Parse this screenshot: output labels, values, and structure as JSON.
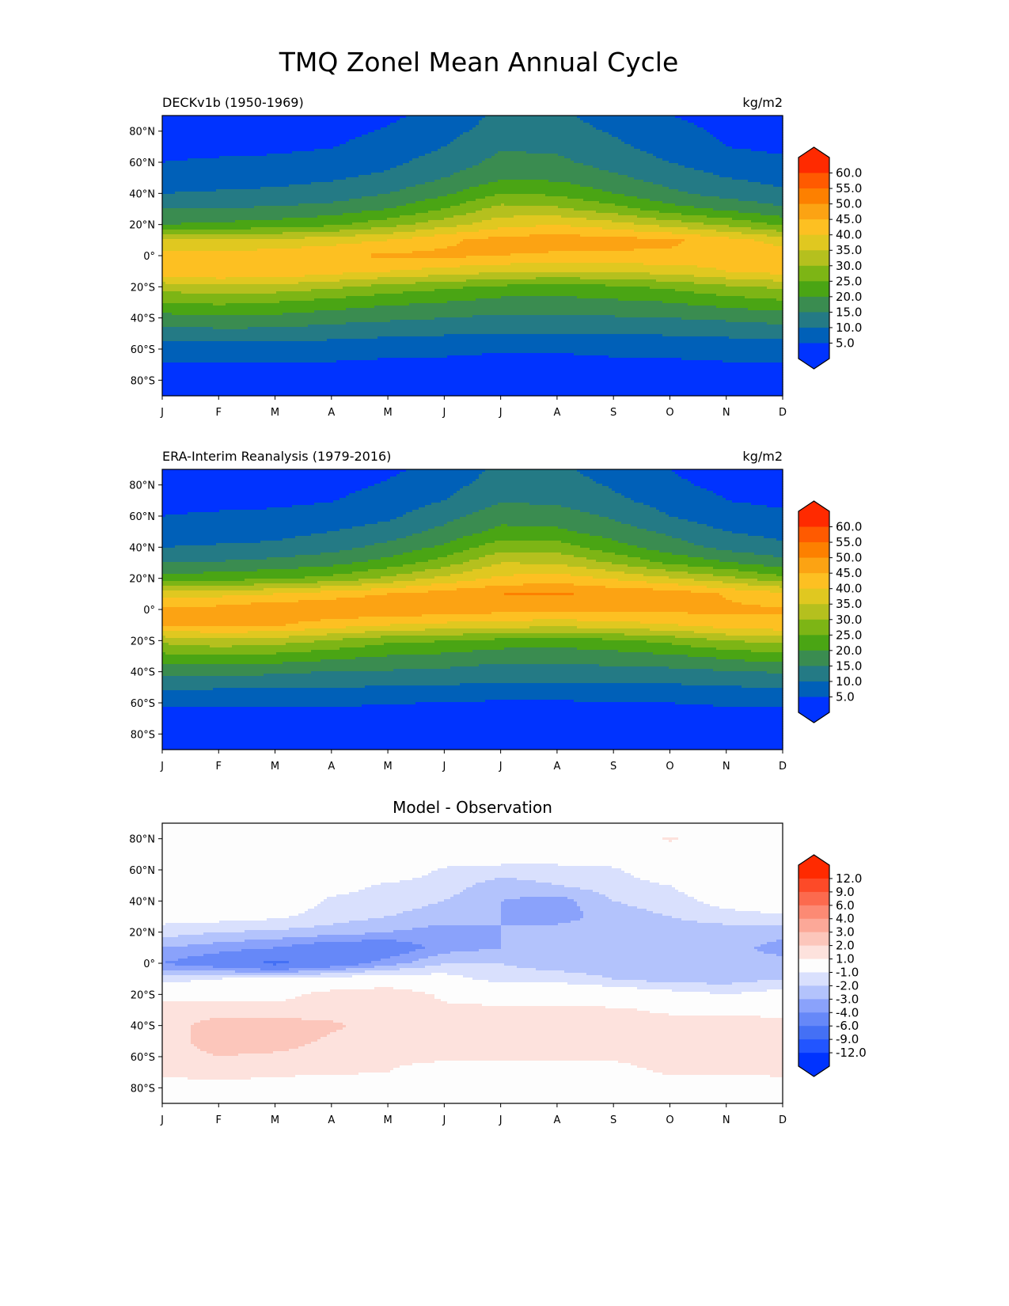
{
  "title": "TMQ Zonel Mean Annual Cycle",
  "chart_data": [
    {
      "type": "heatmap",
      "subtype": "filled-contour",
      "title_left": "DECKv1b (1950-1969)",
      "title_right": "kg/m2",
      "title_center": "",
      "x_ticks": [
        "J",
        "F",
        "M",
        "A",
        "M",
        "J",
        "J",
        "A",
        "S",
        "O",
        "N",
        "D"
      ],
      "y_ticks": [
        "80°N",
        "60°N",
        "40°N",
        "20°N",
        "0°",
        "20°S",
        "40°S",
        "60°S",
        "80°S"
      ],
      "y_tick_values": [
        80,
        60,
        40,
        20,
        0,
        -20,
        -40,
        -60,
        -80
      ],
      "ylim": [
        -90,
        90
      ],
      "lats": [
        90,
        80,
        70,
        60,
        50,
        40,
        30,
        20,
        10,
        0,
        -10,
        -20,
        -30,
        -40,
        -50,
        -60,
        -70,
        -80,
        -90
      ],
      "values": [
        [
          2,
          3,
          4,
          5,
          7.5,
          10,
          15,
          20,
          35,
          42,
          44,
          32,
          25,
          18,
          12.5,
          7,
          4.5,
          3,
          2
        ],
        [
          2,
          2.5,
          4,
          5.5,
          8,
          10.5,
          15,
          21,
          35,
          42,
          45,
          34,
          26,
          19,
          13,
          7.5,
          4.5,
          3,
          2
        ],
        [
          2,
          2.5,
          4,
          6,
          8.5,
          11,
          16,
          22,
          36,
          43,
          45,
          33,
          25,
          18.5,
          13,
          7.5,
          4.5,
          3,
          2
        ],
        [
          2.5,
          3.5,
          4.8,
          7,
          9.5,
          12,
          17,
          24,
          38,
          44,
          42,
          31,
          23,
          17,
          12,
          7,
          4.5,
          3,
          2
        ],
        [
          4,
          5.5,
          7,
          9,
          11,
          15,
          20,
          28,
          40,
          46,
          40,
          28,
          21,
          16,
          11,
          6.5,
          4,
          2.5,
          2
        ],
        [
          7,
          8.5,
          10,
          12,
          15,
          19,
          25,
          33,
          44,
          46,
          38,
          26,
          20,
          15,
          10.5,
          6,
          4,
          2.5,
          2
        ],
        [
          11,
          12,
          14.5,
          16.5,
          19,
          25,
          32,
          38,
          47,
          45,
          36,
          24,
          18,
          14,
          10,
          5.5,
          3.5,
          2,
          1.5
        ],
        [
          11,
          12,
          14,
          16,
          19,
          24,
          31,
          40,
          48,
          44,
          35,
          23,
          18,
          14,
          10,
          5.5,
          3.5,
          2,
          1.5
        ],
        [
          8,
          9.5,
          11,
          13,
          16,
          20,
          27,
          37,
          47,
          44,
          36,
          24,
          19,
          14.5,
          10,
          6,
          4,
          2.5,
          2
        ],
        [
          5,
          7,
          8,
          10,
          13,
          16,
          22,
          33,
          46,
          44,
          37,
          26,
          20,
          15,
          10.5,
          6.5,
          4,
          2.5,
          2
        ],
        [
          3,
          4,
          5,
          7,
          10,
          13,
          19,
          29,
          42,
          43,
          40,
          29,
          22,
          16,
          11,
          7,
          4.5,
          3,
          2
        ],
        [
          2,
          3,
          4,
          6,
          8.5,
          11,
          16,
          24,
          38,
          43,
          42,
          31,
          24,
          17,
          12,
          7,
          4.5,
          3,
          2
        ]
      ],
      "levels": [
        5,
        10,
        15,
        20,
        25,
        30,
        35,
        40,
        45,
        50,
        55,
        60
      ],
      "colors": [
        "#0033ff",
        "#0060b8",
        "#247a85",
        "#3a8c50",
        "#4aa514",
        "#7db515",
        "#b5c01e",
        "#e0c820",
        "#fdc022",
        "#fca313",
        "#fd8000",
        "#ff5a00",
        "#ff2a00"
      ],
      "colorbar_labels": [
        "60.0",
        "55.0",
        "50.0",
        "45.0",
        "40.0",
        "35.0",
        "30.0",
        "25.0",
        "20.0",
        "15.0",
        "10.0",
        "5.0"
      ]
    },
    {
      "type": "heatmap",
      "subtype": "filled-contour",
      "title_left": "ERA-Interim Reanalysis (1979-2016)",
      "title_right": "kg/m2",
      "title_center": "",
      "x_ticks": [
        "J",
        "F",
        "M",
        "A",
        "M",
        "J",
        "J",
        "A",
        "S",
        "O",
        "N",
        "D"
      ],
      "y_ticks": [
        "80°N",
        "60°N",
        "40°N",
        "20°N",
        "0°",
        "20°S",
        "40°S",
        "60°S",
        "80°S"
      ],
      "y_tick_values": [
        80,
        60,
        40,
        20,
        0,
        -20,
        -40,
        -60,
        -80
      ],
      "ylim": [
        -90,
        90
      ],
      "lats": [
        90,
        80,
        70,
        60,
        50,
        40,
        30,
        20,
        10,
        0,
        -10,
        -20,
        -30,
        -40,
        -50,
        -60,
        -70,
        -80,
        -90
      ],
      "values": [
        [
          2,
          3,
          4,
          5,
          7.5,
          10,
          15.5,
          21.5,
          38,
          46,
          45.5,
          31.5,
          23.5,
          16.5,
          11,
          5.5,
          3.3,
          2.5,
          2
        ],
        [
          2,
          2.5,
          4,
          5.5,
          8,
          10.5,
          15.5,
          23,
          38.5,
          47,
          46,
          33.5,
          24.5,
          16.5,
          10.5,
          5.5,
          3,
          2.5,
          2
        ],
        [
          2,
          2.5,
          4,
          6,
          8.5,
          11,
          16.8,
          24.2,
          40,
          49.5,
          45.5,
          32.5,
          23.5,
          16,
          10.5,
          5.7,
          3.3,
          2.5,
          2
        ],
        [
          2.5,
          3.5,
          4.8,
          7,
          10,
          13.2,
          18.5,
          26.5,
          43,
          49,
          42.5,
          29.5,
          21.5,
          14.8,
          10.2,
          5.5,
          3.4,
          2.5,
          2
        ],
        [
          4,
          5.5,
          7,
          9,
          12.2,
          16.5,
          22,
          31,
          45,
          49.5,
          40,
          26.2,
          19.8,
          14.5,
          9.5,
          5.3,
          3,
          2,
          2
        ],
        [
          7,
          8.5,
          10,
          13.2,
          16.5,
          21,
          27.5,
          36.5,
          47.5,
          48,
          38.5,
          25.2,
          18.8,
          13.8,
          9.3,
          4.8,
          3.5,
          2.5,
          2
        ],
        [
          11,
          12,
          14.5,
          18,
          21.5,
          28,
          35,
          41,
          50,
          47,
          37.5,
          23.5,
          16.8,
          12.8,
          8.8,
          4.3,
          3,
          2,
          1.5
        ],
        [
          11,
          12,
          14,
          17.5,
          21,
          27.5,
          34.5,
          42.5,
          50.5,
          46.5,
          36.5,
          22.5,
          16.8,
          12.8,
          8.8,
          4.3,
          3,
          2,
          1.5
        ],
        [
          8,
          9.5,
          11,
          14.2,
          17.5,
          22,
          29.5,
          39.5,
          49,
          46.5,
          38,
          24,
          17.8,
          13.3,
          8.8,
          4.8,
          3.5,
          2.5,
          2
        ],
        [
          5,
          5.8,
          8,
          10,
          14,
          17.5,
          24,
          35.5,
          48.2,
          46.5,
          39.5,
          26.5,
          19.2,
          13.5,
          9,
          5,
          2.8,
          2.5,
          2
        ],
        [
          3,
          4,
          5,
          7,
          10,
          13.5,
          20.5,
          31.5,
          44.5,
          46,
          42.5,
          30,
          21.2,
          14.5,
          9.5,
          5.5,
          3.3,
          3,
          2
        ],
        [
          2,
          3,
          4,
          6,
          8.5,
          11,
          17.2,
          26.5,
          41.5,
          45.5,
          44,
          31.5,
          23.5,
          15.5,
          10.5,
          5.5,
          3.3,
          2.5,
          2
        ]
      ],
      "levels": [
        5,
        10,
        15,
        20,
        25,
        30,
        35,
        40,
        45,
        50,
        55,
        60
      ],
      "colors": [
        "#0033ff",
        "#0060b8",
        "#247a85",
        "#3a8c50",
        "#4aa514",
        "#7db515",
        "#b5c01e",
        "#e0c820",
        "#fdc022",
        "#fca313",
        "#fd8000",
        "#ff5a00",
        "#ff2a00"
      ],
      "colorbar_labels": [
        "60.0",
        "55.0",
        "50.0",
        "45.0",
        "40.0",
        "35.0",
        "30.0",
        "25.0",
        "20.0",
        "15.0",
        "10.0",
        "5.0"
      ]
    },
    {
      "type": "heatmap",
      "subtype": "filled-contour",
      "title_left": "",
      "title_right": "",
      "title_center": "Model - Observation",
      "x_ticks": [
        "J",
        "F",
        "M",
        "A",
        "M",
        "J",
        "J",
        "A",
        "S",
        "O",
        "N",
        "D"
      ],
      "y_ticks": [
        "80°N",
        "60°N",
        "40°N",
        "20°N",
        "0°",
        "20°S",
        "40°S",
        "60°S",
        "80°S"
      ],
      "y_tick_values": [
        80,
        60,
        40,
        20,
        0,
        -20,
        -40,
        -60,
        -80
      ],
      "ylim": [
        -90,
        90
      ],
      "lats": [
        90,
        80,
        70,
        60,
        50,
        40,
        30,
        20,
        10,
        0,
        -10,
        -20,
        -30,
        -40,
        -50,
        -60,
        -70,
        -80,
        -90
      ],
      "values": [
        [
          0,
          0,
          0,
          0,
          0,
          0,
          -0.5,
          -1.5,
          -3,
          -4,
          -1.5,
          0.5,
          1.5,
          1.5,
          1.5,
          1.5,
          1.2,
          0.5,
          0
        ],
        [
          0,
          0,
          0,
          0,
          0,
          0,
          -0.5,
          -2,
          -3.5,
          -5,
          -1,
          0.5,
          1.5,
          2.5,
          2.5,
          2,
          1.5,
          0.5,
          0
        ],
        [
          0,
          0,
          0,
          0,
          0,
          0,
          -0.8,
          -2.2,
          -4,
          -6.5,
          -0.5,
          0.5,
          1.5,
          2.5,
          2.5,
          1.8,
          1.2,
          0.5,
          0
        ],
        [
          0,
          0,
          0,
          0,
          -0.5,
          -1.2,
          -1.5,
          -2.5,
          -5,
          -5,
          -0.5,
          1.5,
          1.5,
          2.2,
          1.8,
          1.5,
          1.1,
          0.5,
          0
        ],
        [
          0,
          0,
          0,
          0,
          -1.2,
          -1.5,
          -2,
          -3,
          -5,
          -3.5,
          0,
          1.8,
          1.2,
          1.5,
          1.5,
          1.2,
          1,
          0.5,
          0
        ],
        [
          0,
          0,
          0,
          -1.2,
          -1.5,
          -2,
          -2.5,
          -3.5,
          -3.5,
          -2,
          -0.5,
          0.8,
          1.2,
          1.2,
          1.2,
          1.2,
          0.5,
          0,
          0
        ],
        [
          0,
          0,
          0,
          -1.5,
          -2.5,
          -3,
          -3,
          -3,
          -3,
          -2,
          -1.5,
          0.5,
          1.2,
          1.2,
          1.2,
          1.2,
          0.5,
          0,
          0
        ],
        [
          0,
          0,
          0,
          -1.5,
          -2,
          -3.5,
          -3.5,
          -2.5,
          -2.5,
          -2.5,
          -1.5,
          0.5,
          1.2,
          1.2,
          1.2,
          1.2,
          0.5,
          0,
          0
        ],
        [
          0,
          0,
          0,
          -1.2,
          -1.5,
          -2,
          -2.5,
          -2.5,
          -2,
          -2.5,
          -2,
          0,
          1.2,
          1.2,
          1.2,
          1.2,
          0.5,
          0,
          0
        ],
        [
          0,
          1.2,
          0,
          0,
          -1,
          -1.5,
          -2,
          -2.5,
          -2.2,
          -2.5,
          -2.5,
          -0.5,
          0.8,
          1.5,
          1.5,
          1.5,
          1.2,
          0,
          0
        ],
        [
          0,
          0,
          0,
          0,
          0,
          -0.5,
          -1.5,
          -2.5,
          -2.5,
          -3,
          -2.5,
          -1,
          0.8,
          1.5,
          1.5,
          1.5,
          1.2,
          0,
          0
        ],
        [
          0,
          0,
          0,
          0,
          0,
          0,
          -1.2,
          -2.5,
          -3.5,
          -2.5,
          -2,
          -0.5,
          0.5,
          1.5,
          1.5,
          1.5,
          1.2,
          0.5,
          0
        ]
      ],
      "levels": [
        -12,
        -9,
        -6,
        -4,
        -3,
        -2,
        -1,
        1,
        2,
        3,
        4,
        6,
        9,
        12
      ],
      "colors": [
        "#0033ff",
        "#2255ff",
        "#4470f5",
        "#6688f8",
        "#8aa2fb",
        "#b3c3fc",
        "#d9e0fd",
        "#fdfdfd",
        "#fde2dd",
        "#fcc6bb",
        "#fca898",
        "#fc8a74",
        "#fc6a4e",
        "#fd4a28",
        "#ff2a00"
      ],
      "colorbar_labels": [
        "12.0",
        "9.0",
        "6.0",
        "4.0",
        "3.0",
        "2.0",
        "1.0",
        "-1.0",
        "-2.0",
        "-3.0",
        "-4.0",
        "-6.0",
        "-9.0",
        "-12.0"
      ]
    }
  ]
}
